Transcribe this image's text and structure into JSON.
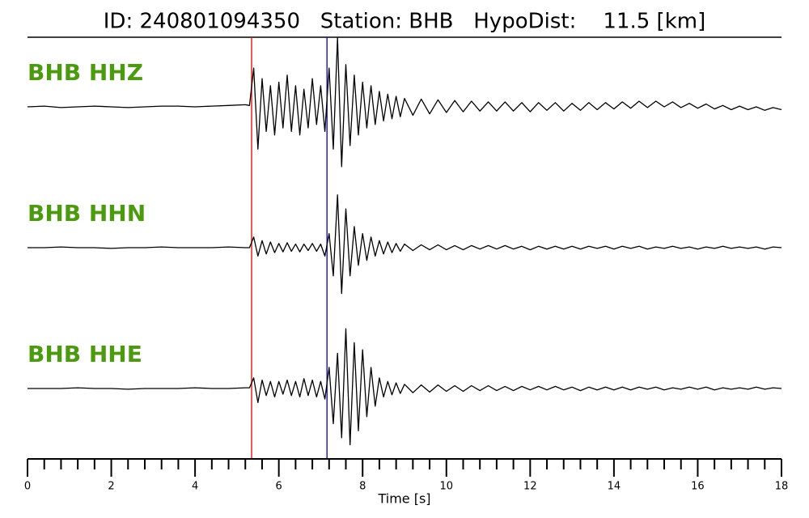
{
  "chart_data": {
    "type": "line",
    "title": "ID: 240801094350   Station: BHB   HypoDist:    11.5 [km]",
    "xlabel": "Time [s]",
    "xlim": [
      0,
      18
    ],
    "xticks": [
      0,
      2,
      4,
      6,
      8,
      10,
      12,
      14,
      16,
      18
    ],
    "xminorticks": [
      0.4,
      0.8,
      1.2,
      1.6,
      2.4,
      2.8,
      3.2,
      3.6,
      4.4,
      4.8,
      5.2,
      5.6,
      6.4,
      6.8,
      7.2,
      7.6,
      8.4,
      8.8,
      9.2,
      9.6,
      10.4,
      10.8,
      11.2,
      11.6,
      12.4,
      12.8,
      13.2,
      13.6,
      14.4,
      14.8,
      15.2,
      15.6,
      16.4,
      16.8,
      17.2,
      17.6
    ],
    "ylim": [
      -1,
      1
    ],
    "label_color": "#4c9a0f",
    "picks": [
      {
        "value": 5.35,
        "color": "#e8221c"
      },
      {
        "value": 7.15,
        "color": "#1f1fcf"
      }
    ],
    "x": [
      0,
      0.4,
      0.8,
      1.2,
      1.6,
      2,
      2.4,
      2.8,
      3.2,
      3.6,
      4,
      4.4,
      4.8,
      5.2,
      5.3,
      5.4,
      5.5,
      5.6,
      5.7,
      5.8,
      5.9,
      6.0,
      6.1,
      6.2,
      6.3,
      6.4,
      6.5,
      6.6,
      6.7,
      6.8,
      6.9,
      7.0,
      7.1,
      7.2,
      7.3,
      7.4,
      7.5,
      7.6,
      7.7,
      7.8,
      7.9,
      8.0,
      8.1,
      8.2,
      8.3,
      8.4,
      8.5,
      8.6,
      8.7,
      8.8,
      8.9,
      9.0,
      9.2,
      9.4,
      9.6,
      9.8,
      10,
      10.2,
      10.4,
      10.6,
      10.8,
      11,
      11.2,
      11.4,
      11.6,
      11.8,
      12,
      12.2,
      12.4,
      12.6,
      12.8,
      13,
      13.2,
      13.4,
      13.6,
      13.8,
      14,
      14.2,
      14.4,
      14.6,
      14.8,
      15,
      15.2,
      15.4,
      15.6,
      15.8,
      16,
      16.2,
      16.4,
      16.6,
      16.8,
      17,
      17.2,
      17.4,
      17.6,
      17.8,
      18
    ],
    "series": [
      {
        "name": "BHB HHZ",
        "color": "#000000",
        "values": [
          0,
          0.01,
          -0.01,
          0,
          0.01,
          0,
          -0.01,
          0,
          0.01,
          0.01,
          0,
          0.01,
          0.02,
          0.03,
          0.02,
          0.55,
          -0.6,
          0.4,
          -0.35,
          0.3,
          -0.4,
          0.35,
          -0.3,
          0.45,
          -0.35,
          0.3,
          -0.4,
          0.25,
          -0.3,
          0.4,
          -0.25,
          0.3,
          -0.35,
          0.55,
          -0.6,
          0.98,
          -0.85,
          0.6,
          -0.55,
          0.45,
          -0.4,
          0.35,
          -0.3,
          0.3,
          -0.25,
          0.22,
          -0.2,
          0.18,
          -0.17,
          0.15,
          -0.14,
          0.12,
          -0.12,
          0.11,
          -0.1,
          0.1,
          -0.08,
          0.09,
          -0.07,
          0.08,
          -0.06,
          0.07,
          -0.06,
          0.07,
          -0.06,
          0.06,
          -0.07,
          0.06,
          -0.05,
          0.06,
          -0.06,
          0.05,
          -0.05,
          0.06,
          -0.04,
          0.06,
          -0.03,
          0.07,
          -0.02,
          0.08,
          -0.01,
          0.08,
          0,
          0.07,
          -0.01,
          0.05,
          -0.02,
          0.04,
          -0.03,
          0.02,
          -0.04,
          0.01,
          -0.04,
          0,
          -0.05,
          -0.01,
          -0.04
        ]
      },
      {
        "name": "BHB HHN",
        "color": "#000000",
        "values": [
          0,
          0,
          0.01,
          0,
          0,
          -0.01,
          0,
          0,
          0.01,
          0,
          0,
          0,
          0.01,
          0,
          0,
          0.15,
          -0.12,
          0.1,
          -0.09,
          0.08,
          -0.07,
          0.06,
          -0.06,
          0.07,
          -0.05,
          0.05,
          -0.06,
          0.05,
          -0.04,
          0.06,
          -0.05,
          0.05,
          -0.12,
          0.2,
          -0.4,
          0.75,
          -0.65,
          0.55,
          -0.4,
          0.3,
          -0.25,
          0.2,
          -0.18,
          0.15,
          -0.12,
          0.1,
          -0.09,
          0.08,
          -0.07,
          0.06,
          -0.05,
          0.05,
          -0.04,
          0.04,
          -0.03,
          0.04,
          -0.03,
          0.03,
          -0.03,
          0.03,
          -0.02,
          0.03,
          -0.02,
          0.03,
          -0.02,
          0.02,
          -0.03,
          0.02,
          -0.02,
          0.02,
          -0.02,
          0.02,
          -0.02,
          0.02,
          -0.01,
          0.02,
          -0.02,
          0.02,
          -0.01,
          0.02,
          -0.02,
          0.01,
          -0.01,
          0.02,
          -0.01,
          0.01,
          -0.02,
          0.01,
          -0.01,
          0.02,
          -0.01,
          0.01,
          -0.01,
          0.01,
          -0.02,
          0.01,
          0
        ]
      },
      {
        "name": "BHB HHE",
        "color": "#000000",
        "values": [
          0,
          0,
          0,
          0.01,
          0,
          0,
          -0.01,
          0,
          0,
          0,
          0.01,
          0,
          0,
          0.01,
          0.01,
          0.15,
          -0.2,
          0.12,
          -0.1,
          0.1,
          -0.12,
          0.1,
          -0.08,
          0.12,
          -0.1,
          0.1,
          -0.12,
          0.14,
          -0.1,
          0.12,
          -0.12,
          0.1,
          -0.15,
          0.3,
          -0.5,
          0.5,
          -0.7,
          0.85,
          -0.8,
          0.65,
          -0.6,
          0.55,
          -0.4,
          0.3,
          -0.25,
          0.15,
          -0.12,
          0.1,
          -0.09,
          0.08,
          -0.07,
          0.06,
          -0.06,
          0.05,
          -0.05,
          0.05,
          -0.04,
          0.04,
          -0.04,
          0.04,
          -0.03,
          0.04,
          -0.03,
          0.03,
          -0.03,
          0.03,
          -0.02,
          0.03,
          -0.02,
          0.03,
          -0.02,
          0.02,
          -0.03,
          0.02,
          -0.02,
          0.02,
          -0.02,
          0.02,
          -0.02,
          0.02,
          -0.01,
          0.02,
          -0.02,
          0.01,
          -0.01,
          0.02,
          -0.01,
          0.02,
          -0.02,
          0.01,
          -0.01,
          0.01,
          -0.01,
          0.02,
          -0.01,
          0.01,
          0
        ]
      }
    ]
  }
}
